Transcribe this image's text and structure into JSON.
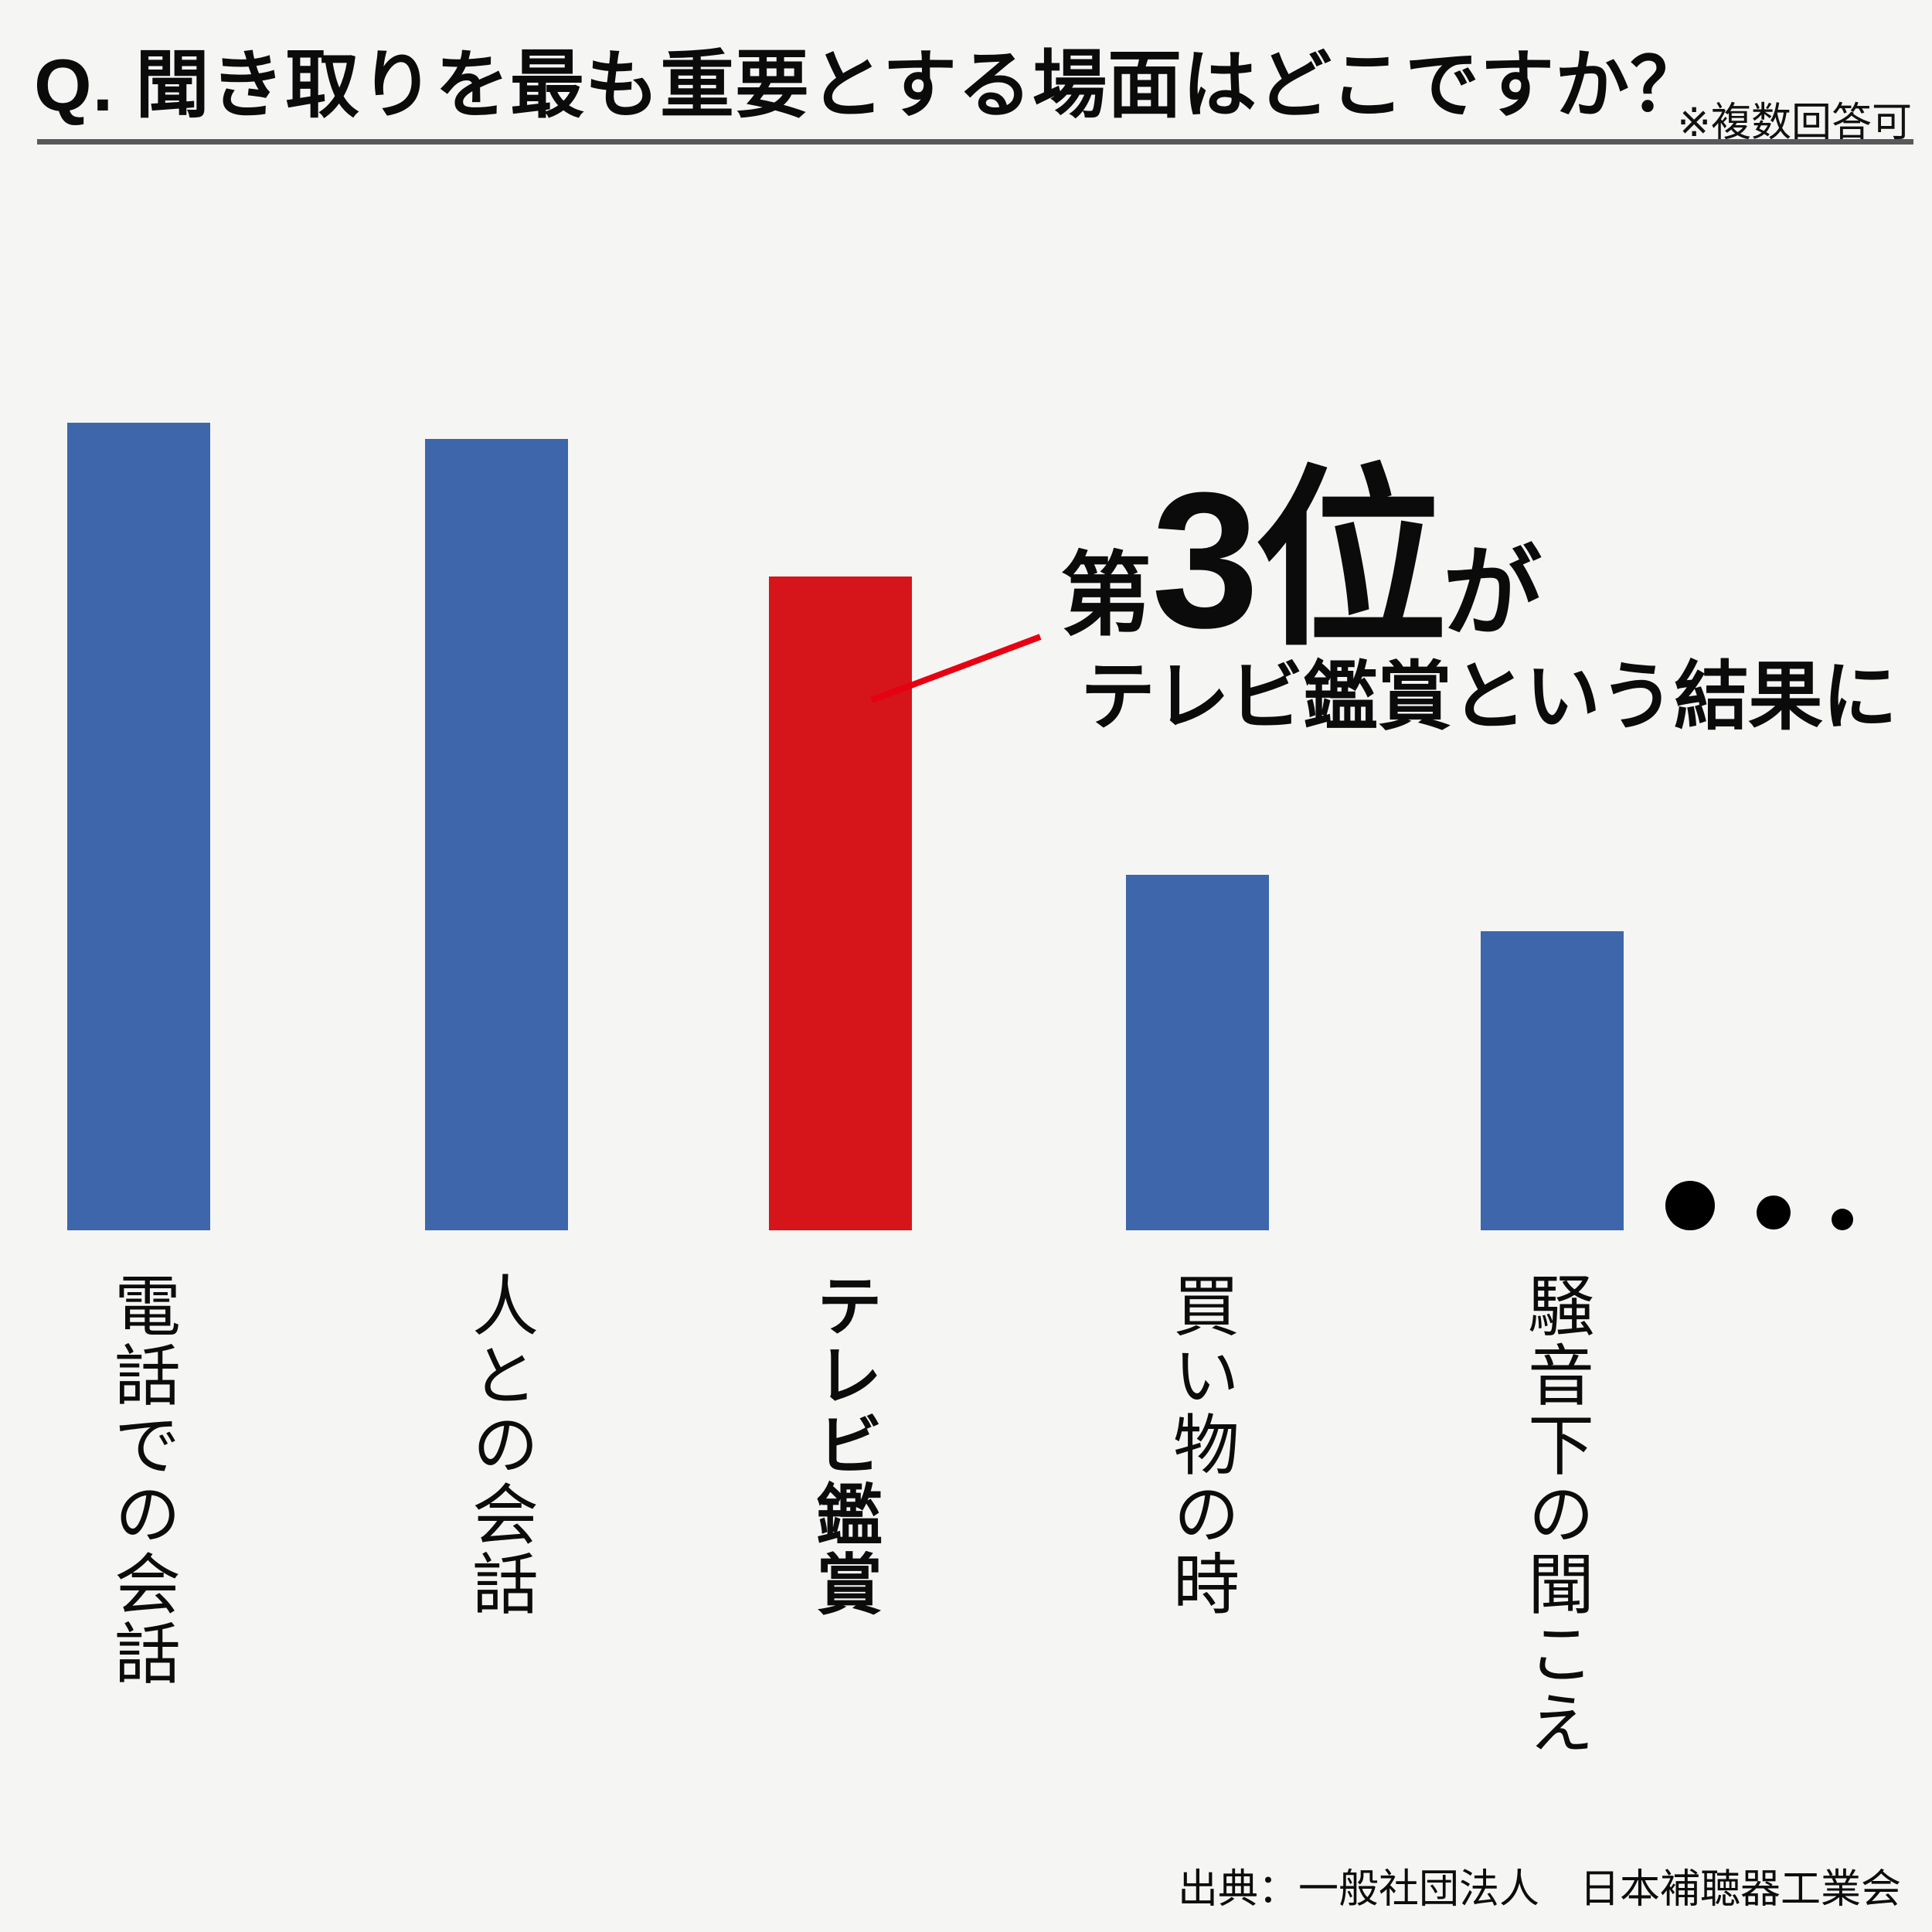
{
  "header": {
    "title": "Q. 聞き取りを最も重要とする場面はどこですか？",
    "note": "※複数回答可"
  },
  "chart_data": {
    "type": "bar",
    "title": "聞き取りを最も重要とする場面（複数回答可）",
    "categories": [
      "電話での会話",
      "人との会話",
      "テレビ鑑賞",
      "買い物の時",
      "騒音下の聞こえ"
    ],
    "values": [
      100,
      98,
      81,
      44,
      37
    ],
    "value_axis_shown": false,
    "gridlines": false,
    "legend": "none",
    "highlight_index": 2,
    "bar_color": "#3d67aa",
    "highlight_color": "#d5151a",
    "ellipsis_dots": 3
  },
  "annotation": {
    "prefix": "第",
    "rank": "3位",
    "suffix": "が",
    "line2": "テレビ鑑賞という結果に",
    "connector_color": "#e60012"
  },
  "source": "出典：一般社団法人　日本補聴器工業会",
  "colors": {
    "background": "#f5f5f4",
    "bar_blue": "#3d67aa",
    "bar_red": "#d5151a",
    "underline_gray": "#58595b",
    "text_black": "#0c0c0c"
  }
}
